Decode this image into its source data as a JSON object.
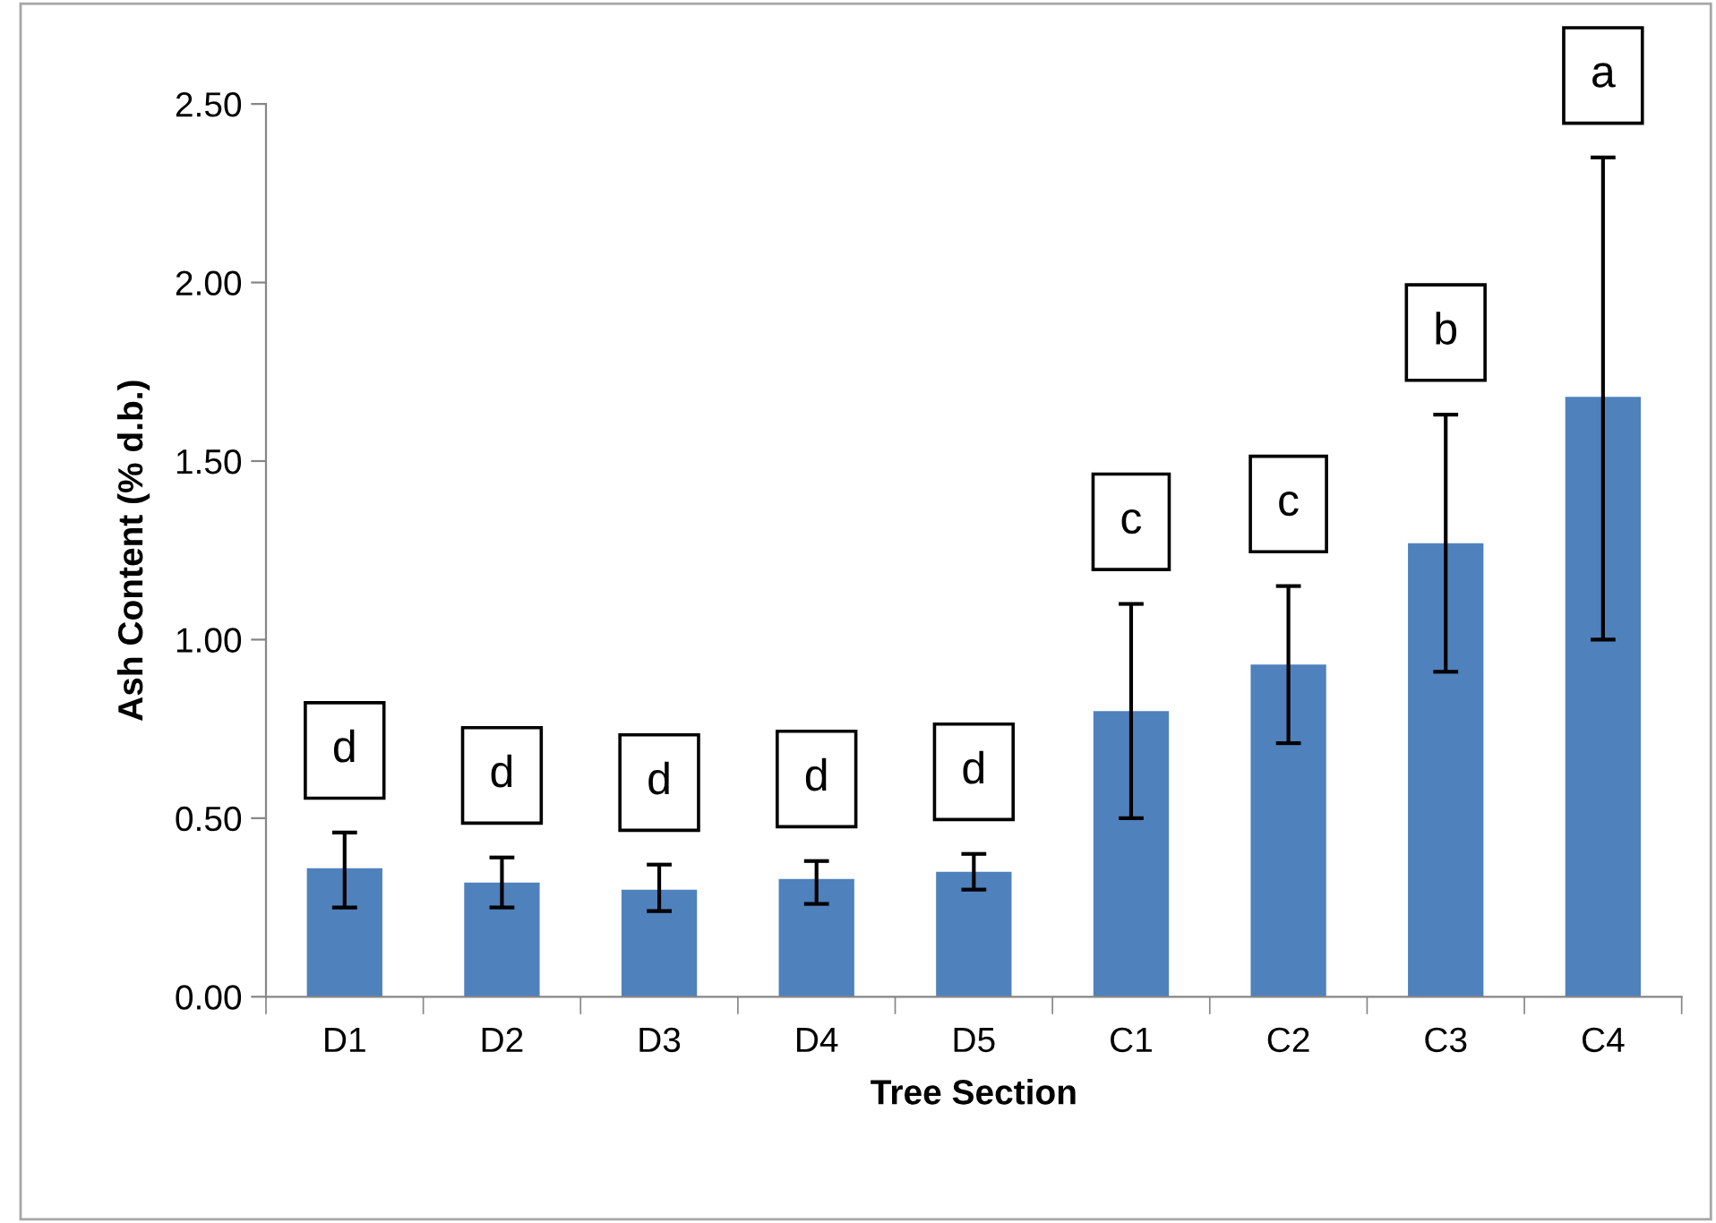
{
  "chart_data": {
    "type": "bar",
    "xlabel": "Tree Section",
    "ylabel": "Ash Content (% d.b.)",
    "categories": [
      "D1",
      "D2",
      "D3",
      "D4",
      "D5",
      "C1",
      "C2",
      "C3",
      "C4"
    ],
    "values": [
      0.36,
      0.32,
      0.3,
      0.33,
      0.35,
      0.8,
      0.93,
      1.27,
      1.68
    ],
    "errors": [
      [
        0.25,
        0.46
      ],
      [
        0.25,
        0.39
      ],
      [
        0.24,
        0.37
      ],
      [
        0.26,
        0.38
      ],
      [
        0.3,
        0.4
      ],
      [
        0.5,
        1.1
      ],
      [
        0.71,
        1.15
      ],
      [
        0.91,
        1.63
      ],
      [
        1.0,
        2.35
      ]
    ],
    "color": "#4f81bd",
    "ylim": [
      0,
      2.5
    ],
    "yticks": [
      {
        "value": 0,
        "label": "0.00"
      },
      {
        "value": 0.5,
        "label": "0.50"
      },
      {
        "value": 1.0,
        "label": "1.00"
      },
      {
        "value": 1.5,
        "label": "1.50"
      },
      {
        "value": 2.0,
        "label": "2.00"
      },
      {
        "value": 2.5,
        "label": "2.50"
      }
    ],
    "grid": false,
    "annotations": [
      "d",
      "d",
      "d",
      "d",
      "d",
      "c",
      "c",
      "b",
      "a"
    ]
  }
}
